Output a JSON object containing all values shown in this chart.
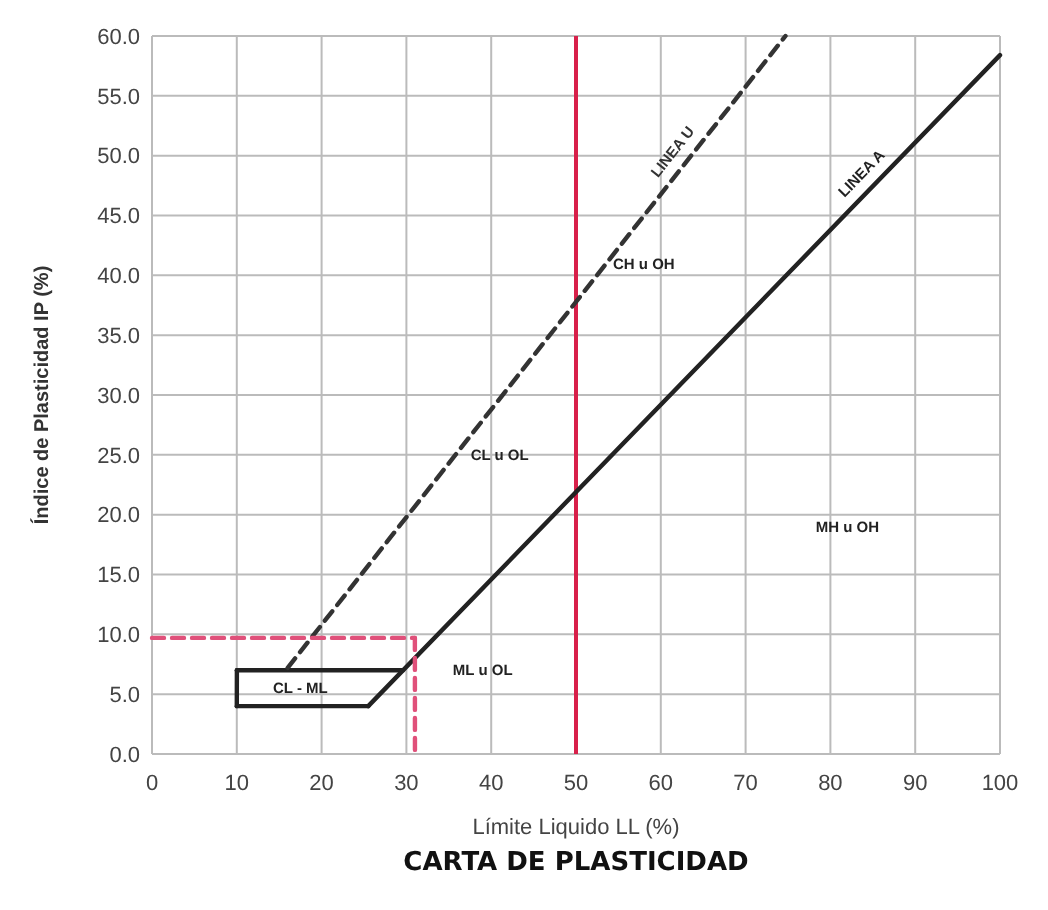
{
  "chart_data": {
    "type": "line",
    "title": "CARTA DE PLASTICIDAD",
    "xlabel": "Límite Liquido LL (%)",
    "ylabel": "Índice de Plasticidad IP (%)",
    "xlim": [
      0,
      100
    ],
    "xticks": [
      0,
      10,
      20,
      30,
      40,
      50,
      60,
      70,
      80,
      90,
      100
    ],
    "ylim": [
      0,
      60
    ],
    "yticks": [
      {
        "value": 0,
        "label": "0.0"
      },
      {
        "value": 5,
        "label": "5.0"
      },
      {
        "value": 10,
        "label": "10.0"
      },
      {
        "value": 15,
        "label": "15.0"
      },
      {
        "value": 20,
        "label": "20.0"
      },
      {
        "value": 25,
        "label": "25.0"
      },
      {
        "value": 30,
        "label": "30.0"
      },
      {
        "value": 35,
        "label": "35.0"
      },
      {
        "value": 40,
        "label": "40.0"
      },
      {
        "value": 45,
        "label": "45.0"
      },
      {
        "value": 50,
        "label": "50.0"
      },
      {
        "value": 55,
        "label": "55.0"
      },
      {
        "value": 60,
        "label": "60.0"
      }
    ],
    "grid": true,
    "marker": "none",
    "series": [
      {
        "name": "LINEA A",
        "color": "#222222",
        "line_style": "solid",
        "x": [
          25.5,
          100
        ],
        "values": [
          4,
          58.4
        ]
      },
      {
        "color": "#222222",
        "line_style": "solid",
        "x": [
          10,
          29.6
        ],
        "values": [
          7,
          7
        ]
      },
      {
        "color": "#222222",
        "line_style": "solid",
        "x": [
          10,
          25.5
        ],
        "values": [
          4,
          4
        ]
      },
      {
        "color": "#222222",
        "line_style": "solid",
        "x": [
          10,
          10.01
        ],
        "values": [
          4,
          7
        ]
      },
      {
        "name": "LINEA U",
        "color": "#333333",
        "line_style": "dashed",
        "x": [
          16,
          74.7
        ],
        "values": [
          7.2,
          60
        ]
      },
      {
        "color": "#e0507a",
        "line_style": "dashed",
        "x": [
          0,
          31
        ],
        "values": [
          9.7,
          9.7
        ]
      },
      {
        "color": "#e0507a",
        "line_style": "dashed",
        "x": [
          31,
          31.01
        ],
        "values": [
          9.7,
          0
        ]
      }
    ],
    "ref_lines": [
      {
        "axis": "x",
        "value": 50,
        "color": "#d8204a",
        "line_style": "solid"
      }
    ],
    "annotations": [
      "CH u OH",
      "CL u OL",
      "MH u OH",
      "ML u OL",
      "CL - ML"
    ]
  }
}
